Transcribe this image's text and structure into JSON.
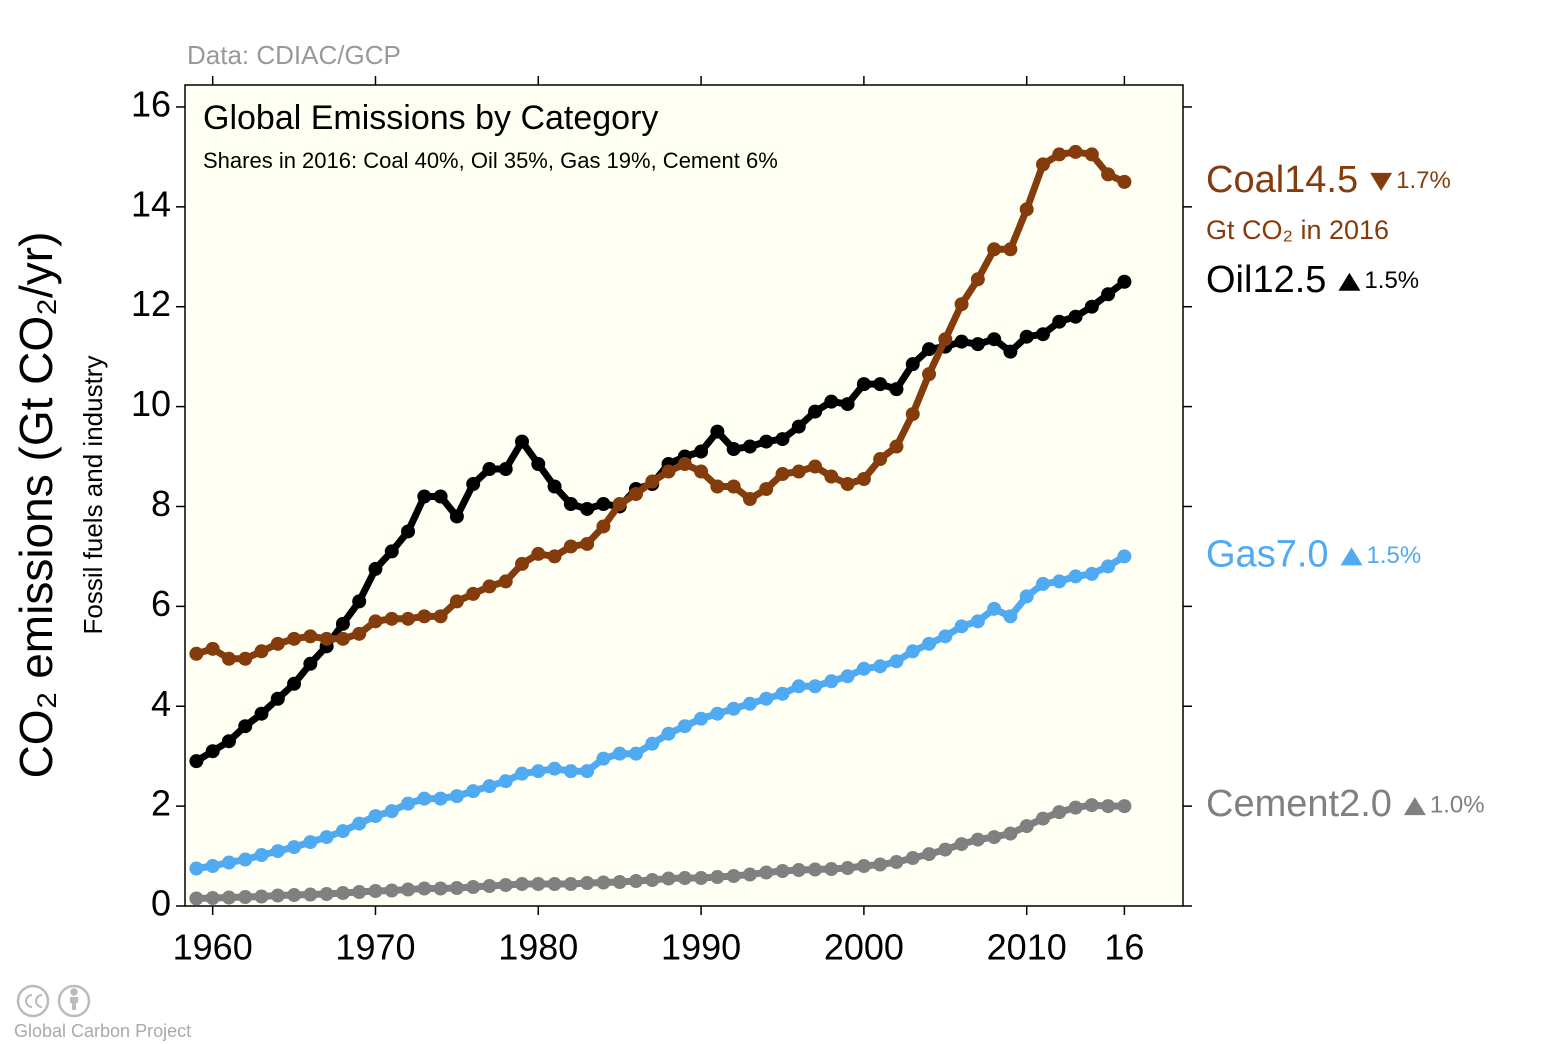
{
  "chart_data": {
    "type": "line",
    "source": "Data: CDIAC/GCP",
    "title": "Global Emissions by Category",
    "subtitle": "Shares in 2016: Coal 40%, Oil 35%, Gas 19%, Cement 6%",
    "ylabel": "CO₂ emissions (Gt CO₂/yr)",
    "ylabel2": "Fossil fuels and industry",
    "unit_note": "Gt CO₂ in 2016",
    "footer": "Global Carbon Project",
    "x": [
      1959,
      1960,
      1961,
      1962,
      1963,
      1964,
      1965,
      1966,
      1967,
      1968,
      1969,
      1970,
      1971,
      1972,
      1973,
      1974,
      1975,
      1976,
      1977,
      1978,
      1979,
      1980,
      1981,
      1982,
      1983,
      1984,
      1985,
      1986,
      1987,
      1988,
      1989,
      1990,
      1991,
      1992,
      1993,
      1994,
      1995,
      1996,
      1997,
      1998,
      1999,
      2000,
      2001,
      2002,
      2003,
      2004,
      2005,
      2006,
      2007,
      2008,
      2009,
      2010,
      2011,
      2012,
      2013,
      2014,
      2015,
      2016
    ],
    "series": [
      {
        "name": "Coal",
        "color": "#843c0c",
        "end_label": "14.5",
        "change_label": "1.7%",
        "change_direction": "down",
        "values": [
          5.05,
          5.15,
          4.95,
          4.95,
          5.1,
          5.25,
          5.35,
          5.4,
          5.35,
          5.35,
          5.45,
          5.7,
          5.75,
          5.75,
          5.8,
          5.8,
          6.1,
          6.25,
          6.4,
          6.5,
          6.85,
          7.05,
          7.0,
          7.2,
          7.25,
          7.6,
          8.05,
          8.25,
          8.5,
          8.7,
          8.85,
          8.7,
          8.4,
          8.4,
          8.15,
          8.35,
          8.65,
          8.7,
          8.8,
          8.6,
          8.45,
          8.55,
          8.95,
          9.2,
          9.85,
          10.65,
          11.35,
          12.05,
          12.55,
          13.15,
          13.15,
          13.95,
          14.85,
          15.05,
          15.1,
          15.05,
          14.65,
          14.5
        ]
      },
      {
        "name": "Oil",
        "color": "#000000",
        "end_label": "12.5",
        "change_label": "1.5%",
        "change_direction": "up",
        "values": [
          2.9,
          3.1,
          3.3,
          3.6,
          3.85,
          4.15,
          4.45,
          4.85,
          5.2,
          5.65,
          6.1,
          6.75,
          7.1,
          7.5,
          8.2,
          8.2,
          7.8,
          8.45,
          8.75,
          8.75,
          9.3,
          8.85,
          8.4,
          8.05,
          7.95,
          8.05,
          8.0,
          8.35,
          8.45,
          8.85,
          9.0,
          9.1,
          9.5,
          9.15,
          9.2,
          9.3,
          9.35,
          9.6,
          9.9,
          10.1,
          10.05,
          10.45,
          10.45,
          10.35,
          10.85,
          11.15,
          11.2,
          11.3,
          11.25,
          11.35,
          11.1,
          11.4,
          11.45,
          11.7,
          11.8,
          12.0,
          12.25,
          12.5
        ]
      },
      {
        "name": "Gas",
        "color": "#4faaf2",
        "end_label": "7.0",
        "change_label": "1.5%",
        "change_direction": "up",
        "values": [
          0.75,
          0.8,
          0.87,
          0.93,
          1.02,
          1.1,
          1.18,
          1.28,
          1.38,
          1.5,
          1.65,
          1.8,
          1.9,
          2.05,
          2.15,
          2.15,
          2.2,
          2.3,
          2.4,
          2.5,
          2.65,
          2.7,
          2.75,
          2.7,
          2.7,
          2.95,
          3.05,
          3.05,
          3.25,
          3.45,
          3.6,
          3.75,
          3.85,
          3.95,
          4.05,
          4.15,
          4.25,
          4.4,
          4.4,
          4.5,
          4.6,
          4.75,
          4.8,
          4.9,
          5.1,
          5.25,
          5.4,
          5.6,
          5.7,
          5.95,
          5.8,
          6.2,
          6.45,
          6.5,
          6.6,
          6.65,
          6.8,
          7.0
        ]
      },
      {
        "name": "Cement",
        "color": "#808080",
        "end_label": "2.0",
        "change_label": "1.0%",
        "change_direction": "up",
        "values": [
          0.15,
          0.16,
          0.17,
          0.18,
          0.19,
          0.21,
          0.22,
          0.23,
          0.24,
          0.26,
          0.28,
          0.3,
          0.31,
          0.33,
          0.35,
          0.35,
          0.36,
          0.38,
          0.4,
          0.42,
          0.44,
          0.44,
          0.44,
          0.44,
          0.46,
          0.47,
          0.48,
          0.5,
          0.52,
          0.55,
          0.56,
          0.56,
          0.58,
          0.6,
          0.63,
          0.67,
          0.7,
          0.72,
          0.73,
          0.74,
          0.76,
          0.8,
          0.83,
          0.88,
          0.96,
          1.04,
          1.13,
          1.24,
          1.33,
          1.38,
          1.45,
          1.6,
          1.75,
          1.88,
          1.97,
          2.02,
          2.0,
          2.0
        ]
      }
    ],
    "xlim": [
      1958.3,
      2019.6
    ],
    "xticks": [
      1960,
      1970,
      1980,
      1990,
      2000,
      2010,
      {
        "value": 2016,
        "label": "16"
      }
    ],
    "ylim": [
      0,
      16.44
    ],
    "yticks": [
      0,
      2,
      4,
      6,
      8,
      10,
      12,
      14,
      16
    ],
    "grid": false,
    "background": "#fffff4"
  }
}
